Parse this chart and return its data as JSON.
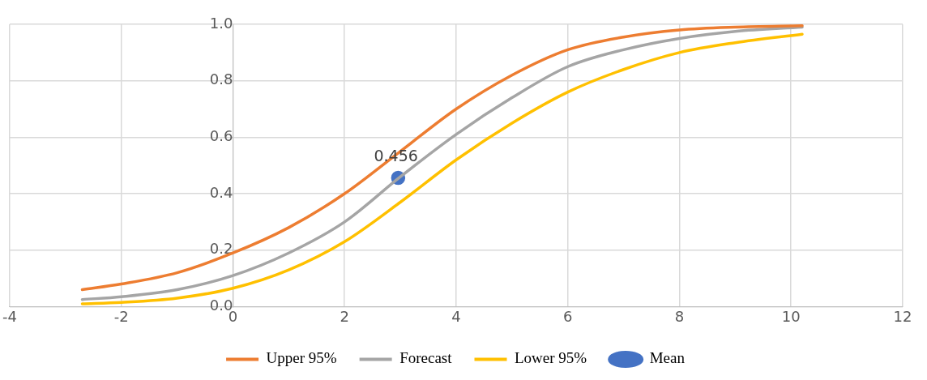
{
  "chart_data": {
    "type": "line",
    "xlim": [
      -4,
      12
    ],
    "xticks": [
      -4,
      -2,
      0,
      2,
      4,
      6,
      8,
      10,
      12
    ],
    "ylim": [
      0,
      1
    ],
    "yticks": [
      {
        "value": 0,
        "label": "0.0"
      },
      {
        "value": 0.2,
        "label": "0.2"
      },
      {
        "value": 0.4,
        "label": "0.4"
      },
      {
        "value": 0.6,
        "label": "0.6"
      },
      {
        "value": 0.8,
        "label": "0.8"
      },
      {
        "value": 1,
        "label": "1.0"
      }
    ],
    "grid": true,
    "legend": "bottom",
    "marker": "none",
    "line_style": "solid",
    "series": [
      {
        "name": "Upper 95%",
        "color": "#ed7d31",
        "x": [
          -2.7,
          -2,
          -1,
          0,
          1,
          2,
          3,
          4,
          5,
          6,
          7,
          8,
          9,
          10.2
        ],
        "values": [
          0.06,
          0.08,
          0.12,
          0.19,
          0.28,
          0.4,
          0.55,
          0.7,
          0.82,
          0.91,
          0.955,
          0.98,
          0.99,
          0.995
        ]
      },
      {
        "name": "Forecast",
        "color": "#a5a5a5",
        "x": [
          -2.7,
          -2,
          -1,
          0,
          1,
          2,
          3,
          4,
          5,
          6,
          7,
          8,
          9,
          10.2
        ],
        "values": [
          0.025,
          0.035,
          0.06,
          0.11,
          0.19,
          0.3,
          0.46,
          0.61,
          0.74,
          0.85,
          0.91,
          0.95,
          0.975,
          0.99
        ]
      },
      {
        "name": "Lower 95%",
        "color": "#ffc000",
        "x": [
          -2.7,
          -2,
          -1,
          0,
          1,
          2,
          3,
          4,
          5,
          6,
          7,
          8,
          9,
          10.2
        ],
        "values": [
          0.01,
          0.015,
          0.03,
          0.065,
          0.13,
          0.23,
          0.37,
          0.52,
          0.65,
          0.76,
          0.84,
          0.9,
          0.935,
          0.965
        ]
      },
      {
        "name": "Mean",
        "type": "scatter",
        "marker": "circle",
        "color": "#4472c4",
        "x": [
          2.96
        ],
        "values": [
          0.456
        ],
        "value_labels": [
          "0.456"
        ]
      }
    ]
  }
}
